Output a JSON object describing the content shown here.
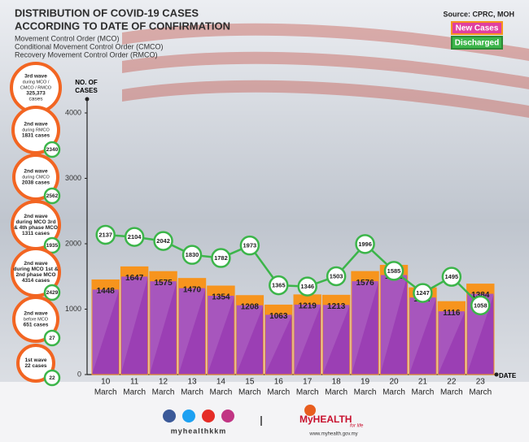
{
  "chart_data": {
    "type": "bar",
    "title_lines": [
      "DISTRIBUTION OF COVID-19 CASES",
      "ACCORDING TO DATE OF CONFIRMATION"
    ],
    "subtitle_lines": [
      "Movement Control Order (MCO)",
      "Conditional Movement Control Order (CMCO)",
      "Recovery Movement Control Order (RMCO)"
    ],
    "source": "Source: CPRC, MOH",
    "y_label_lines": [
      "NO. OF",
      "CASES"
    ],
    "x_label": "DATE",
    "categories": [
      [
        "10",
        "March"
      ],
      [
        "11",
        "March"
      ],
      [
        "12",
        "March"
      ],
      [
        "13",
        "March"
      ],
      [
        "14",
        "March"
      ],
      [
        "15",
        "March"
      ],
      [
        "16",
        "March"
      ],
      [
        "17",
        "March"
      ],
      [
        "18",
        "March"
      ],
      [
        "19",
        "March"
      ],
      [
        "20",
        "March"
      ],
      [
        "21",
        "March"
      ],
      [
        "22",
        "March"
      ],
      [
        "23",
        "March"
      ]
    ],
    "ylim": [
      0,
      4000
    ],
    "yticks": [
      0,
      1000,
      2000,
      3000,
      4000
    ],
    "series": [
      {
        "name": "New Cases",
        "color": "#9b3fb4",
        "top_color": "#f7941d",
        "values": [
          1448,
          1647,
          1575,
          1470,
          1354,
          1208,
          1063,
          1219,
          1213,
          1576,
          1671,
          1327,
          1116,
          1384
        ]
      },
      {
        "name": "Discharged",
        "color": "#3cb54a",
        "type": "line",
        "values": [
          2137,
          2104,
          2042,
          1830,
          1782,
          1973,
          1365,
          1346,
          1503,
          1996,
          1585,
          1247,
          1495,
          1058
        ]
      }
    ],
    "waves": [
      {
        "lines": [
          "3rd wave",
          "during MCO /",
          "CMCO / RMCO",
          "325,373",
          "cases"
        ]
      },
      {
        "lines": [
          "2nd wave",
          "during RMCO",
          "1831 cases"
        ],
        "discharged": 2340
      },
      {
        "lines": [
          "2nd wave",
          "during CMCO",
          "2038 cases"
        ],
        "discharged": 2562
      },
      {
        "lines": [
          "2nd wave",
          "during MCO 3rd",
          "& 4th phase MCO",
          "1311 cases"
        ],
        "discharged": 1935
      },
      {
        "lines": [
          "2nd wave",
          "during MCO 1st &",
          "2nd phase MCO",
          "4314 cases"
        ],
        "discharged": 2429
      },
      {
        "lines": [
          "2nd wave",
          "before MCO",
          "651 cases"
        ],
        "discharged": 27
      },
      {
        "lines": [
          "1st wave",
          "22 cases"
        ],
        "discharged": 22
      }
    ],
    "footer": {
      "handle": "myhealthkkm",
      "brand": "MyHEALTH",
      "tagline": "for life",
      "url": "www.myhealth.gov.my"
    }
  }
}
